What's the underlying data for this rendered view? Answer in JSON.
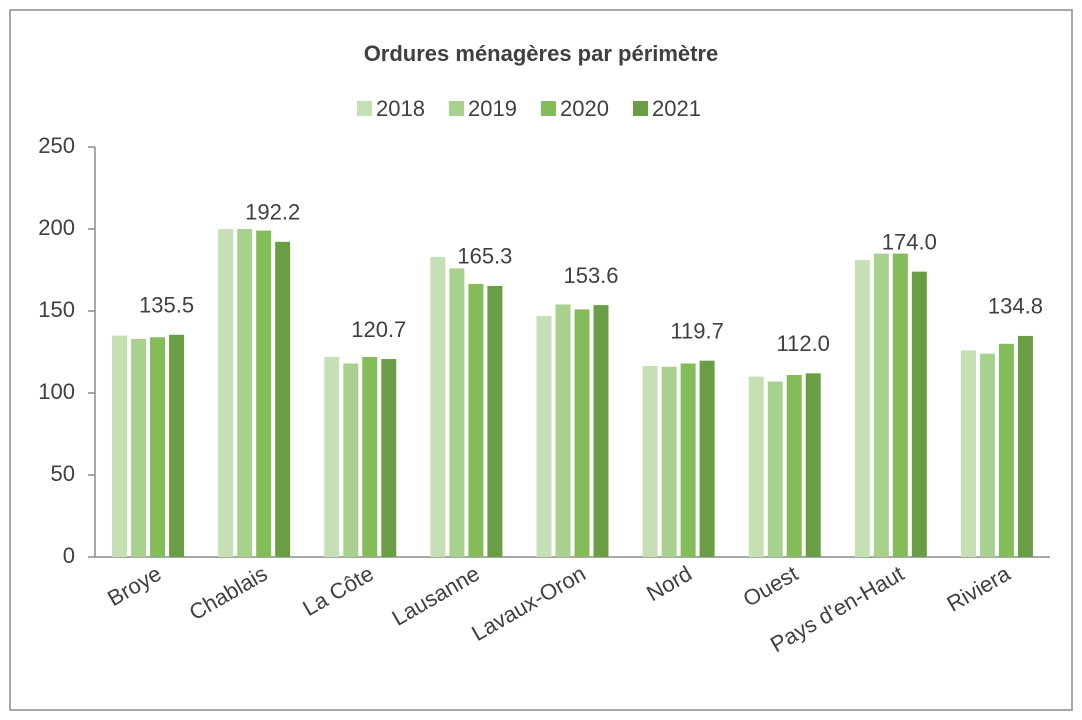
{
  "chart_data": {
    "type": "bar",
    "title": "Ordures ménagères par périmètre",
    "categories": [
      "Broye",
      "Chablais",
      "La Côte",
      "Lausanne",
      "Lavaux-Oron",
      "Nord",
      "Ouest",
      "Pays d'en-Haut",
      "Riviera"
    ],
    "series": [
      {
        "name": "2018",
        "color": "#c5e0b4",
        "values": [
          135,
          200,
          122,
          183,
          147,
          116.5,
          110,
          181,
          126
        ]
      },
      {
        "name": "2019",
        "color": "#a9d18e",
        "values": [
          133,
          200,
          118,
          176,
          154,
          116,
          107,
          185,
          124
        ]
      },
      {
        "name": "2020",
        "color": "#84bc5a",
        "values": [
          134,
          199,
          122,
          166.5,
          151,
          118,
          111,
          185,
          130
        ]
      },
      {
        "name": "2021",
        "color": "#6a9e45",
        "values": [
          135.5,
          192.2,
          120.7,
          165.3,
          153.6,
          119.7,
          112.0,
          174.0,
          134.8
        ],
        "value_labels": [
          "135.5",
          "192.2",
          "120.7",
          "165.3",
          "153.6",
          "119.7",
          "112.0",
          "174.0",
          "134.8"
        ]
      }
    ],
    "ylim": [
      0,
      250
    ],
    "yticks": [
      0,
      50,
      100,
      150,
      200,
      250
    ],
    "grid": false
  }
}
